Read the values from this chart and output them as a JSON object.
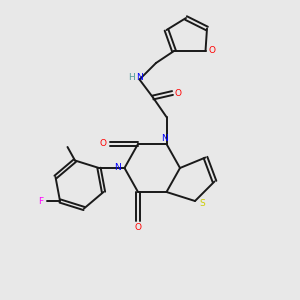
{
  "background_color": "#e8e8e8",
  "bond_color": "#1a1a1a",
  "N_color": "#0000ff",
  "O_color": "#ff0000",
  "S_color": "#cccc00",
  "F_color": "#ff00ff",
  "H_color": "#4d9999",
  "figsize": [
    3.0,
    3.0
  ],
  "dpi": 100,
  "xlim": [
    0,
    10
  ],
  "ylim": [
    0,
    10
  ]
}
